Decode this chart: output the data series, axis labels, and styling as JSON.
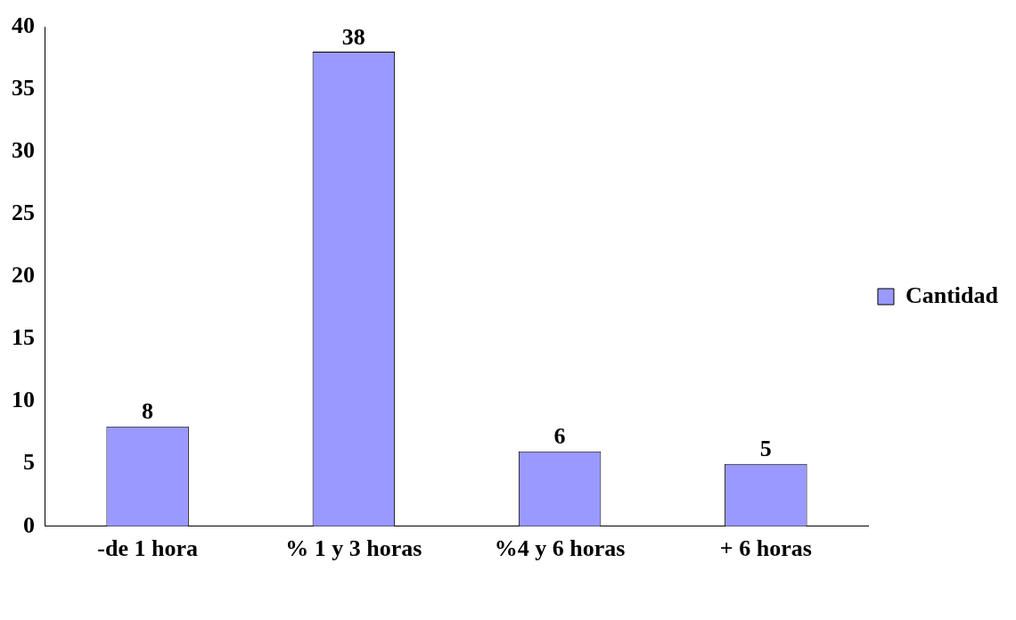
{
  "chart_data": {
    "type": "bar",
    "categories": [
      "-de 1 hora",
      "% 1 y 3 horas",
      "%4 y 6 horas",
      "+ 6 horas"
    ],
    "series": [
      {
        "name": "Cantidad",
        "color": "#9999ff",
        "values": [
          8,
          38,
          6,
          5
        ]
      }
    ],
    "ylim": [
      0,
      40
    ],
    "yticks": [
      0,
      5,
      10,
      15,
      20,
      25,
      30,
      35,
      40
    ],
    "grid": false,
    "legend": "right",
    "data_labels": true
  }
}
